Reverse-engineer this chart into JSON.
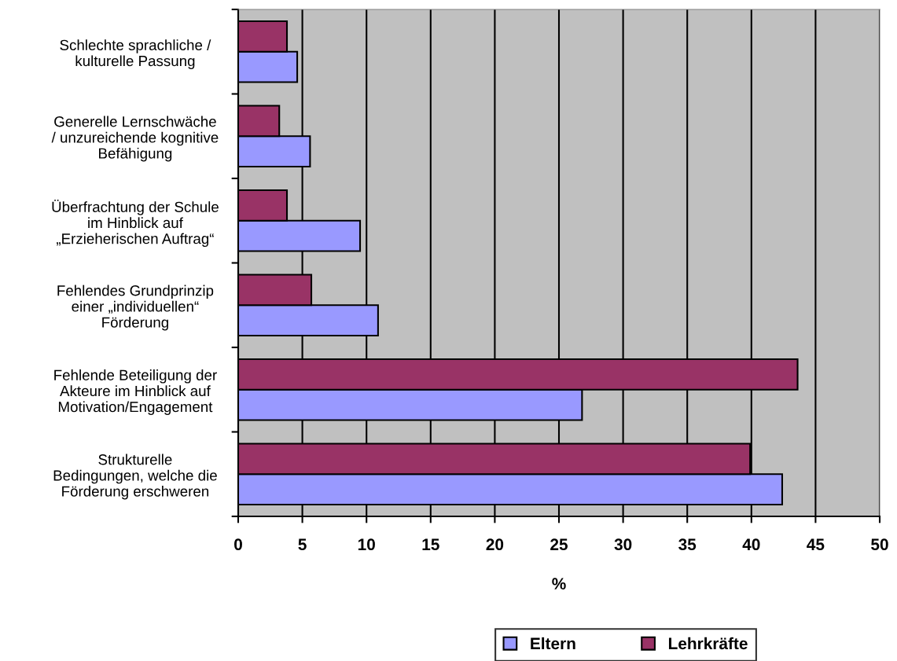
{
  "chart_data": {
    "type": "bar",
    "orientation": "horizontal",
    "xlabel": "%",
    "categories": [
      "Schlechte sprachliche /\nkulturelle Passung",
      "Generelle Lernschwäche\n/ unzureichende kognitive\nBefähigung",
      "Überfrachtung der Schule\nim Hinblick auf\n„Erzieherischen Auftrag“",
      "Fehlendes Grundprinzip\neiner „individuellen“\nFörderung",
      "Fehlende Beteiligung der\nAkteure im Hinblick auf\nMotivation/Engagement",
      "Strukturelle\nBedingungen, welche die\nFörderung erschweren"
    ],
    "series": [
      {
        "name": "Eltern",
        "color": "#9999ff",
        "values": [
          4.6,
          5.6,
          9.5,
          10.9,
          26.8,
          42.4
        ]
      },
      {
        "name": "Lehrkräfte",
        "color": "#993366",
        "values": [
          3.8,
          3.2,
          3.8,
          5.7,
          43.6,
          39.9
        ]
      }
    ],
    "xlim": [
      0,
      50
    ],
    "xticks": [
      0,
      5,
      10,
      15,
      20,
      25,
      30,
      35,
      40,
      45,
      50
    ],
    "grid": "x",
    "legend": "bottom"
  }
}
